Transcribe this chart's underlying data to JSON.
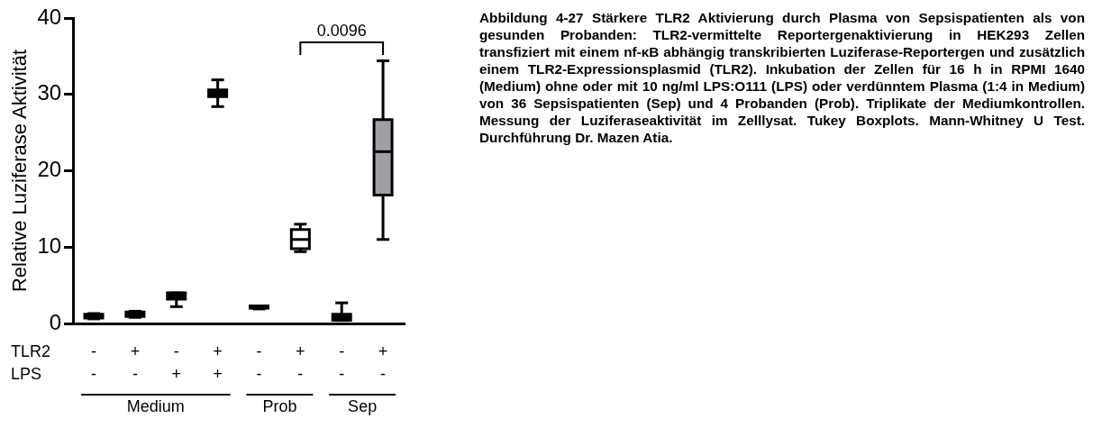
{
  "chart_data": {
    "type": "box",
    "ylabel": "Relative Luziferase Aktivität",
    "categories": [
      "-\n-",
      "+\n-",
      "-\n+",
      "+\n+",
      "-\n-",
      "+\n-",
      "-\n-",
      "+\n-"
    ],
    "boxes": [
      {
        "low": 0.6,
        "q1": 0.7,
        "median": 0.9,
        "q3": 1.2,
        "high": 1.3
      },
      {
        "low": 0.8,
        "q1": 0.9,
        "median": 1.1,
        "q3": 1.5,
        "high": 1.6
      },
      {
        "low": 2.2,
        "q1": 3.2,
        "median": 3.6,
        "q3": 4.0,
        "high": 4.0
      },
      {
        "low": 28.4,
        "q1": 29.7,
        "median": 30.2,
        "q3": 30.6,
        "high": 31.9
      },
      {
        "low": 1.9,
        "q1": 2.0,
        "median": 2.1,
        "q3": 2.3,
        "high": 2.3
      },
      {
        "low": 9.4,
        "q1": 9.8,
        "median": 11.0,
        "q3": 12.3,
        "high": 13.0
      },
      {
        "low": 0.4,
        "q1": 0.4,
        "median": 1.0,
        "q3": 1.2,
        "high": 2.7
      },
      {
        "low": 11.0,
        "q1": 16.8,
        "median": 22.5,
        "q3": 26.7,
        "high": 34.4
      }
    ],
    "colors": [
      "#000000",
      "#000000",
      "#000000",
      "#000000",
      "#000000",
      "#ffffff",
      "#000000",
      "#a0a0a4"
    ],
    "ylim": [
      0,
      40
    ],
    "yticks": [
      0,
      10,
      20,
      30,
      40
    ],
    "grid": false,
    "legend": false,
    "annotations": [
      "0.0096",
      "TLR2",
      "LPS",
      "Medium",
      "Prob",
      "Sep",
      "Abbildung 4-27 Stärkere TLR2 Aktivierung durch Plasma von Sepsispatienten als von gesunden Probanden: TLR2-vermittelte Reportergenaktivierung in HEK293 Zellen transfiziert mit einem nf-κB abhängig transkribierten Luziferase-Reportergen und zusätzlich einem TLR2-Expressionsplasmid (TLR2). Inkubation der Zellen für 16 h in RPMI 1640 (Medium) ohne oder mit 10 ng/ml LPS:O111 (LPS) oder verdünntem Plasma (1:4 in Medium) von 36 Sepsispatienten (Sep) und 4 Probanden (Prob). Triplikate der Mediumkontrollen. Messung der Luziferaseaktivität im Zelllysat. Tukey Boxplots. Mann-Whitney U Test. Durchführung Dr. Mazen Atia."
    ]
  }
}
